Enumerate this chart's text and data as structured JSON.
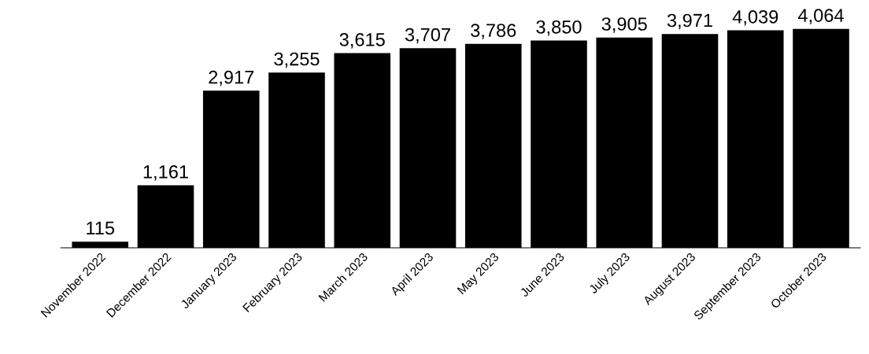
{
  "chart_data": {
    "type": "bar",
    "categories": [
      "November 2022",
      "December 2022",
      "January 2023",
      "February 2023",
      "March 2023",
      "April 2023",
      "May 2023",
      "June 2023",
      "July 2023",
      "August 2023",
      "September 2023",
      "October 2023"
    ],
    "values": [
      115,
      1161,
      2917,
      3255,
      3615,
      3707,
      3786,
      3850,
      3905,
      3971,
      4039,
      4064
    ],
    "value_labels": [
      "115",
      "1,161",
      "2,917",
      "3,255",
      "3,615",
      "3,707",
      "3,786",
      "3,850",
      "3,905",
      "3,971",
      "4,039",
      "4,064"
    ],
    "color": "#000000",
    "grid": false,
    "legend": false,
    "tick_labels": "x"
  }
}
